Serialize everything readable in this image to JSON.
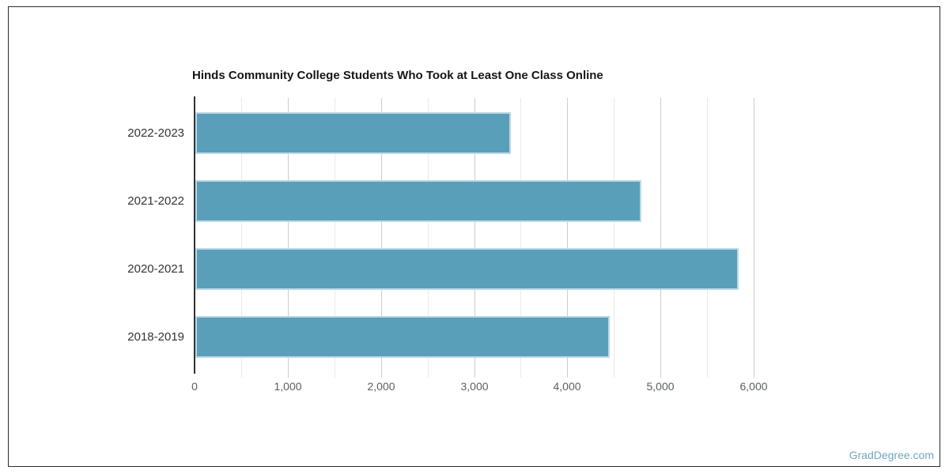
{
  "title": "Hinds Community College Students Who Took at Least One Class Online",
  "watermark": "GradDegree.com",
  "colors": {
    "bar_fill": "#5A9FBA",
    "bar_border": "#BCD9E6",
    "axis_line": "#2F3337",
    "grid_major": "#C9CCCE",
    "grid_minor": "#E7E9EA",
    "title_text": "#161616",
    "tick_text": "#5B5E61",
    "category_text": "#333333",
    "watermark_text": "#70A6BF",
    "frame_border": "#2B2B2B"
  },
  "chart_data": {
    "type": "bar",
    "orientation": "horizontal",
    "title": "Hinds Community College Students Who Took at Least One Class Online",
    "categories": [
      "2022-2023",
      "2021-2022",
      "2020-2021",
      "2018-2019"
    ],
    "values": [
      3390,
      4790,
      5830,
      4450
    ],
    "xlabel": "",
    "ylabel": "",
    "xlim": [
      0,
      6300
    ],
    "x_tick_values": [
      0,
      1000,
      2000,
      3000,
      4000,
      5000,
      6000
    ],
    "x_tick_labels": [
      "0",
      "1,000",
      "2,000",
      "3,000",
      "4,000",
      "5,000",
      "6,000"
    ],
    "minor_tick_interval": 500,
    "grid": "vertical, major and minor",
    "legend": false
  }
}
